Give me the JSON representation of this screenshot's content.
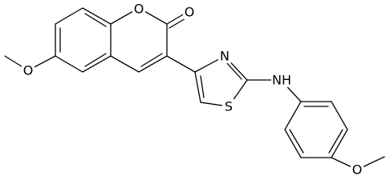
{
  "atoms": [
    {
      "label": "O"
    },
    {
      "label": "O"
    },
    {
      "label": "O"
    },
    {
      "label": "N"
    },
    {
      "label": "S"
    },
    {
      "label": "NH"
    },
    {
      "label": "O"
    }
  ]
}
